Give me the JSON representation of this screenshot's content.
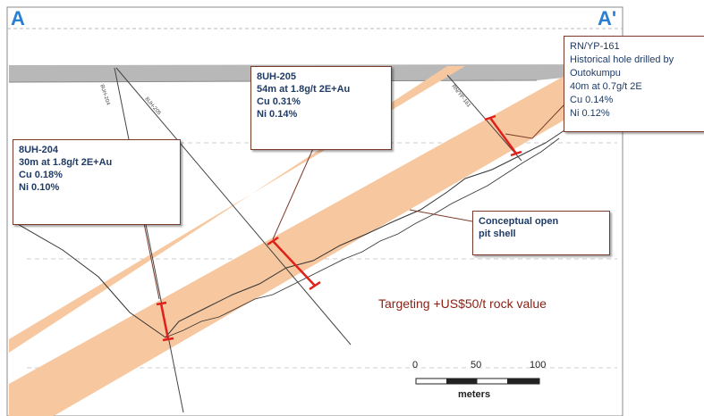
{
  "section": {
    "left_label": "A",
    "right_label": "A'",
    "target_text": "Targeting +US$50/t rock value"
  },
  "callouts": {
    "hole_204": {
      "lines": [
        "8UH-204",
        "30m at 1.8g/t 2E+Au",
        "Cu 0.18%",
        "Ni 0.10%"
      ]
    },
    "hole_205": {
      "lines": [
        "8UH-205",
        "54m at 1.8g/t 2E+Au",
        "Cu 0.31%",
        "Ni 0.14%"
      ]
    },
    "hole_161": {
      "lines": [
        "RN/YP-161",
        "Historical hole drilled by",
        "Outokumpu",
        "40m at 0.7g/t  2E",
        "Cu 0.14%",
        "Ni 0.12%"
      ]
    },
    "pit_shell": {
      "lines": [
        "Conceptual  open",
        "pit shell"
      ]
    }
  },
  "hole_labels": {
    "h204": "8UH-204",
    "h205": "8UH-205",
    "h161": "RN/YP-161"
  },
  "scale_bar": {
    "ticks": [
      "0",
      "50",
      "100"
    ],
    "unit": "meters"
  },
  "colors": {
    "orebody": "#f7c8a0",
    "intercept": "#e0201a",
    "callout_text": "#1f3b66",
    "target_text": "#8a1f12",
    "section_letter": "#2a7fd0"
  }
}
